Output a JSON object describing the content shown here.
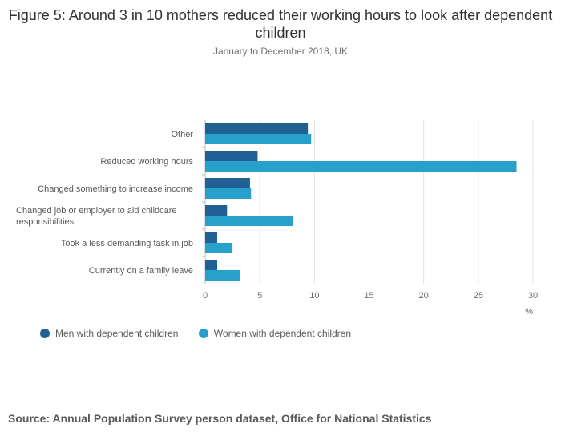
{
  "header": {
    "title": "Figure 5: Around 3 in 10 mothers reduced their working hours to look after dependent children",
    "subtitle": "January to December 2018, UK"
  },
  "colors": {
    "men": "#206095",
    "women": "#27a0cc",
    "grid": "#e0e0e0",
    "axis": "#bcbcbc"
  },
  "chart_data": {
    "type": "bar",
    "orientation": "horizontal",
    "categories": [
      "Other",
      "Reduced working hours",
      "Changed something to increase income",
      "Changed job or employer to aid childcare responsibilities",
      "Took a less demanding task in job",
      "Currently on a family leave"
    ],
    "category_lines": [
      [
        "Other"
      ],
      [
        "Reduced working hours"
      ],
      [
        "Changed something to increase income"
      ],
      [
        "Changed job or employer to aid childcare",
        "responsibilities"
      ],
      [
        "Took a less demanding task in job"
      ],
      [
        "Currently on a family leave"
      ]
    ],
    "series": [
      {
        "name": "Men with dependent children",
        "values": [
          9.4,
          4.8,
          4.1,
          2.0,
          1.1,
          1.1
        ]
      },
      {
        "name": "Women with dependent children",
        "values": [
          9.7,
          28.5,
          4.2,
          8.0,
          2.5,
          3.2
        ]
      }
    ],
    "xlim": [
      0,
      30
    ],
    "xticks": [
      0,
      5,
      10,
      15,
      20,
      25,
      30
    ],
    "xlabel": "%",
    "grid": true,
    "legend_position": "bottom-left"
  },
  "footer": {
    "source": "Source: Annual Population Survey person dataset, Office for National Statistics"
  }
}
